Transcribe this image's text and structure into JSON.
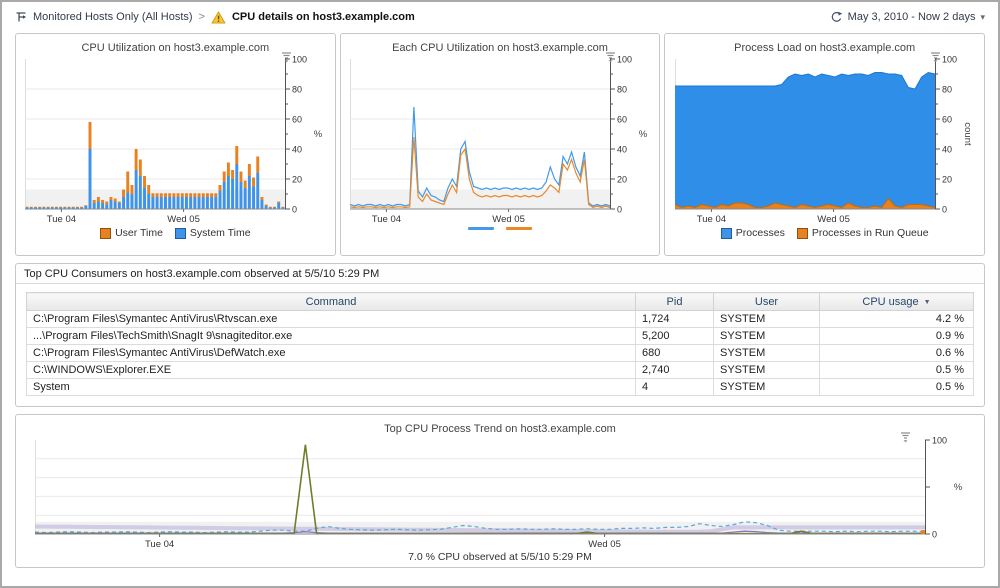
{
  "header": {
    "breadcrumb_root": "Monitored Hosts Only (All Hosts)",
    "breadcrumb_separator": ">",
    "page_title": "CPU details on host3.example.com",
    "time_range": "May 3, 2010 - Now 2 days"
  },
  "table": {
    "title": "Top CPU Consumers on host3.example.com observed at 5/5/10 5:29 PM",
    "columns": [
      "Command",
      "Pid",
      "User",
      "CPU usage"
    ],
    "sort_column": "CPU usage",
    "sort_direction": "desc",
    "rows": [
      {
        "command": "C:\\Program Files\\Symantec AntiVirus\\Rtvscan.exe",
        "pid": "1,724",
        "user": "SYSTEM",
        "cpu_usage": "4.2 %"
      },
      {
        "command": "...\\Program Files\\TechSmith\\SnagIt 9\\snagiteditor.exe",
        "pid": "5,200",
        "user": "SYSTEM",
        "cpu_usage": "0.9 %"
      },
      {
        "command": "C:\\Program Files\\Symantec AntiVirus\\DefWatch.exe",
        "pid": "680",
        "user": "SYSTEM",
        "cpu_usage": "0.6 %"
      },
      {
        "command": "C:\\WINDOWS\\Explorer.EXE",
        "pid": "2,740",
        "user": "SYSTEM",
        "cpu_usage": "0.5 %"
      },
      {
        "command": "System",
        "pid": "4",
        "user": "SYSTEM",
        "cpu_usage": "0.5 %"
      }
    ]
  },
  "chart_data": [
    {
      "type": "stacked-bar",
      "title": "CPU Utilization on host3.example.com",
      "ylabel": "%",
      "ylim": [
        0,
        100
      ],
      "yticks": [
        0,
        20,
        40,
        60,
        80,
        100
      ],
      "yminor": 10,
      "band": 13,
      "xticks": [
        {
          "label": "Tue 04",
          "pos": 0.14
        },
        {
          "label": "Wed 05",
          "pos": 0.61
        }
      ],
      "legend": [
        {
          "label": "User Time",
          "color": "#e8821f",
          "shape": "square"
        },
        {
          "label": "System Time",
          "color": "#3d94ea",
          "shape": "square"
        }
      ],
      "series": [
        {
          "name": "System Time",
          "color": "#3d94ea",
          "values": [
            1,
            1,
            1,
            1,
            1,
            1,
            1,
            1,
            1,
            1,
            1,
            1,
            1,
            1,
            2,
            40,
            4,
            5,
            4,
            3,
            6,
            5,
            4,
            8,
            11,
            10,
            26,
            22,
            14,
            10,
            8,
            8,
            8,
            8,
            8,
            8,
            8,
            8,
            8,
            8,
            8,
            8,
            8,
            8,
            8,
            8,
            12,
            18,
            22,
            20,
            30,
            18,
            14,
            22,
            15,
            24,
            6,
            2,
            1,
            1,
            4,
            1
          ]
        },
        {
          "name": "User Time",
          "color": "#e8821f",
          "values": [
            0.5,
            0.5,
            0.5,
            0.5,
            0.5,
            0.5,
            0.5,
            0.5,
            0.5,
            0.5,
            0.5,
            0.5,
            0.5,
            0.5,
            0.5,
            18,
            2,
            3,
            2,
            2,
            2,
            2,
            1,
            5,
            14,
            6,
            14,
            11,
            8,
            6,
            2.5,
            2.5,
            2.5,
            2.5,
            2.5,
            2.5,
            2.5,
            2.5,
            2.5,
            2.5,
            2.5,
            2.5,
            2.5,
            2.5,
            2.5,
            2.5,
            4,
            7,
            9,
            6,
            12,
            7,
            5,
            8,
            6,
            11,
            2,
            1,
            0.5,
            0.5,
            1,
            0.5
          ]
        }
      ]
    },
    {
      "type": "line",
      "title": "Each CPU Utilization on host3.example.com",
      "ylabel": "%",
      "ylim": [
        0,
        100
      ],
      "yticks": [
        0,
        20,
        40,
        60,
        80,
        100
      ],
      "yminor": 10,
      "band": 13,
      "xticks": [
        {
          "label": "Tue 04",
          "pos": 0.14
        },
        {
          "label": "Wed 05",
          "pos": 0.61
        }
      ],
      "legend": [
        {
          "label": "",
          "color": "#4499e8",
          "shape": "line"
        },
        {
          "label": "",
          "color": "#e8882a",
          "shape": "line"
        }
      ],
      "series": [
        {
          "color": "#4499e8",
          "width": 1.2,
          "values": [
            3,
            2,
            3,
            2,
            3,
            3,
            2,
            3,
            2,
            3,
            2,
            3,
            3,
            2,
            3,
            68,
            12,
            8,
            14,
            9,
            8,
            6,
            5,
            14,
            20,
            15,
            40,
            45,
            25,
            15,
            14,
            13,
            14,
            13,
            14,
            13,
            14,
            14,
            13,
            14,
            13,
            14,
            13,
            14,
            13,
            14,
            18,
            28,
            20,
            16,
            35,
            30,
            38,
            28,
            22,
            38,
            4,
            2,
            3,
            2,
            3,
            2
          ]
        },
        {
          "color": "#e8882a",
          "width": 1.2,
          "values": [
            1.5,
            1,
            1.5,
            1,
            1.5,
            1.5,
            1,
            1.5,
            1,
            1.5,
            1,
            1.5,
            1.5,
            1,
            1.5,
            48,
            8,
            5,
            10,
            6,
            5,
            4,
            3,
            10,
            16,
            11,
            36,
            40,
            20,
            11,
            9,
            8,
            9,
            8,
            9,
            8,
            9,
            9,
            8,
            9,
            8,
            9,
            8,
            9,
            8,
            9,
            12,
            16,
            14,
            11,
            30,
            26,
            33,
            24,
            18,
            33,
            3,
            1,
            2,
            1,
            2,
            1
          ]
        }
      ]
    },
    {
      "type": "area",
      "title": "Process Load on host3.example.com",
      "ylabel": "count",
      "ylim": [
        0,
        100
      ],
      "yticks": [
        0,
        20,
        40,
        60,
        80,
        100
      ],
      "yminor": 10,
      "xticks": [
        {
          "label": "Tue 04",
          "pos": 0.14
        },
        {
          "label": "Wed 05",
          "pos": 0.61
        }
      ],
      "legend": [
        {
          "label": "Processes",
          "color": "#3d94ea",
          "shape": "square"
        },
        {
          "label": "Processes in Run Queue",
          "color": "#e8821f",
          "shape": "square"
        }
      ],
      "series": [
        {
          "name": "Processes",
          "color": "#2e8ee8",
          "fill": true,
          "edge": "#1d78cf",
          "values": [
            82,
            82,
            82,
            82,
            82,
            82,
            82,
            82,
            82,
            82,
            82,
            82,
            82,
            82,
            82,
            82,
            83,
            88,
            90,
            89,
            90,
            88,
            90,
            89,
            88,
            90,
            89,
            90,
            90,
            89,
            91,
            91,
            90,
            90,
            89,
            81,
            80,
            88,
            91,
            90
          ]
        },
        {
          "name": "Processes in Run Queue",
          "color": "#e8821f",
          "fill": true,
          "edge": "#c26a0e",
          "values": [
            3,
            1,
            2,
            1,
            3,
            2,
            1,
            3,
            2,
            4,
            4,
            3,
            1,
            1,
            2,
            4,
            3,
            2,
            1,
            3,
            2,
            1,
            2,
            3,
            2,
            1,
            4,
            2,
            1,
            1,
            2,
            1,
            7,
            2,
            1,
            3,
            3,
            3,
            2,
            1
          ]
        }
      ]
    },
    {
      "type": "line",
      "title": "Top CPU Process Trend on host3.example.com",
      "caption": "7.0 % CPU observed at 5/5/10 5:29 PM",
      "ylabel": "%",
      "ylim": [
        0,
        100
      ],
      "yticks": [
        0,
        50,
        100
      ],
      "ylabeled": [
        0,
        100
      ],
      "yminor": 2,
      "band": 13,
      "xticks": [
        {
          "label": "Tue 04",
          "pos": 0.14
        },
        {
          "label": "Wed 05",
          "pos": 0.64
        }
      ],
      "end_marker": {
        "color": "#e8821f"
      },
      "series": [
        {
          "color": "#b3a5d6",
          "width": 4,
          "opacity": 0.5,
          "values": [
            8,
            7.9,
            7.8,
            7.7,
            7.6,
            7.5,
            7.4,
            7.3,
            7.2,
            7.1,
            7,
            6.9,
            6.8,
            6.7,
            6.6,
            6.5,
            6.4,
            6.3,
            6.2,
            6.1,
            6,
            5.9,
            5.8,
            5.7,
            5.6,
            5.5,
            5.4,
            5.3,
            5.2,
            5.1,
            5,
            4.9,
            4.8,
            4.7,
            4.6,
            4.5,
            4.4,
            4.3,
            4.2,
            4.1,
            4,
            3.9,
            3.8,
            3.7,
            3.6,
            3.5,
            3.4,
            3.3,
            3.2,
            3.1,
            3,
            2.9,
            2.8,
            2.7,
            2.6,
            2.5,
            2.5,
            2.5,
            2.5,
            2.6,
            3,
            5,
            7,
            7,
            7,
            7,
            7,
            7,
            7,
            7,
            7,
            7,
            7,
            7,
            7,
            7,
            7,
            7,
            7,
            7
          ]
        },
        {
          "color": "#55aadd",
          "width": 1.2,
          "dash": "4 3",
          "values": [
            2,
            1.5,
            2,
            2.5,
            2,
            1.5,
            2,
            2,
            2.5,
            2,
            1.5,
            2,
            2.5,
            2,
            2,
            1.5,
            2,
            2.5,
            2,
            2,
            3,
            4,
            4,
            3,
            3,
            6,
            8,
            6,
            5,
            4.5,
            4,
            4.5,
            5,
            4.5,
            4,
            4.5,
            5,
            7,
            9,
            8,
            6,
            5,
            5,
            5.5,
            5,
            5,
            5.5,
            5,
            5,
            5.5,
            5,
            5,
            6,
            6,
            6.5,
            6,
            7,
            7,
            8,
            11,
            9,
            8,
            10,
            13,
            12,
            9,
            4,
            3,
            3,
            3,
            3,
            2.5,
            3,
            2.5,
            3,
            3,
            2.5,
            3,
            3,
            2.5
          ]
        },
        {
          "color": "#8877bb",
          "width": 1.3,
          "values": [
            1,
            1,
            1,
            1,
            1,
            1,
            1,
            1,
            1,
            1,
            1,
            1,
            1,
            1,
            1,
            1,
            1,
            1,
            1,
            1,
            1,
            1,
            1,
            1.5,
            2.5,
            1.5,
            1,
            1,
            1,
            1,
            1,
            1,
            1,
            1,
            1,
            1,
            1,
            1,
            1,
            1,
            1,
            1,
            1,
            1,
            1,
            1,
            1,
            1,
            1,
            1,
            1,
            1,
            1,
            1,
            1,
            1,
            1,
            1,
            1,
            1,
            1,
            1,
            2,
            3,
            2.5,
            1.5,
            1,
            1,
            1,
            1,
            1,
            1,
            1,
            1,
            1,
            1,
            1,
            1,
            1,
            1
          ]
        },
        {
          "color": "#6f7d2c",
          "width": 1.6,
          "values": [
            0.3,
            0.3,
            0.3,
            0.3,
            0.3,
            0.3,
            0.3,
            0.3,
            0.3,
            0.3,
            0.3,
            0.3,
            0.3,
            0.3,
            0.3,
            0.3,
            0.3,
            0.3,
            0.3,
            0.3,
            0.3,
            0.3,
            0.3,
            0.5,
            95,
            0.5,
            0.3,
            0.3,
            0.3,
            0.3,
            0.3,
            0.3,
            0.3,
            0.3,
            0.3,
            0.3,
            0.3,
            0.3,
            0.3,
            0.3,
            0.3,
            0.3,
            0.3,
            0.3,
            0.3,
            0.3,
            0.3,
            0.3,
            0.3,
            2,
            0.3,
            0.3,
            0.3,
            0.3,
            0.3,
            0.3,
            0.3,
            0.3,
            0.3,
            0.3,
            0.3,
            0.3,
            0.3,
            0.3,
            0.3,
            0.3,
            0.3,
            0.3,
            3,
            0.5,
            0.3,
            0.3,
            0.3,
            0.3,
            0.3,
            0.3,
            0.3,
            0.3,
            0.3,
            0.3
          ]
        }
      ]
    }
  ]
}
